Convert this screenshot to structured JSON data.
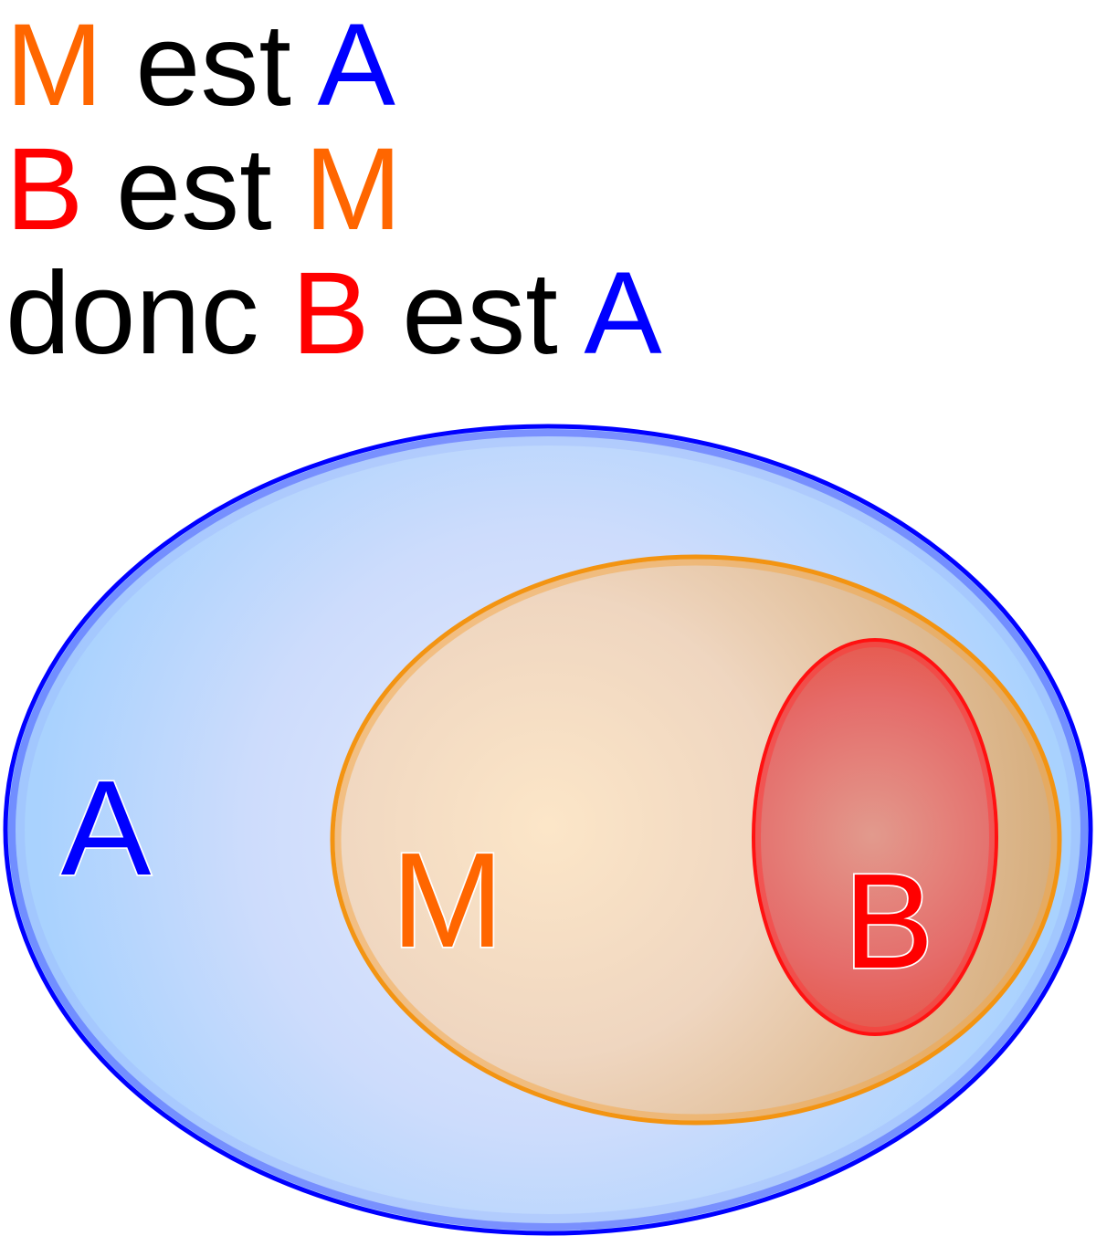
{
  "premises": [
    {
      "words": [
        {
          "text": "M",
          "role": "M"
        },
        {
          "text": "est",
          "role": "word"
        },
        {
          "text": "A",
          "role": "A"
        }
      ]
    },
    {
      "words": [
        {
          "text": "B",
          "role": "B"
        },
        {
          "text": "est",
          "role": "word"
        },
        {
          "text": "M",
          "role": "M"
        }
      ]
    },
    {
      "words": [
        {
          "text": "donc",
          "role": "word"
        },
        {
          "text": "B",
          "role": "B"
        },
        {
          "text": "est",
          "role": "word"
        },
        {
          "text": "A",
          "role": "A"
        }
      ]
    }
  ],
  "sets": {
    "A": {
      "label": "A",
      "color": "#0000ff",
      "fill_light": "#dfe6fb",
      "fill_dark": "#a9d2fe"
    },
    "M": {
      "label": "M",
      "color": "#ff6600",
      "stroke": "#f39412",
      "fill_light": "#fce8ce",
      "fill_dark": "#d8b081"
    },
    "B": {
      "label": "B",
      "color": "#ff0000",
      "stroke": "#ff1111",
      "fill_light": "#e2988c",
      "fill_dark": "#e65040"
    }
  }
}
